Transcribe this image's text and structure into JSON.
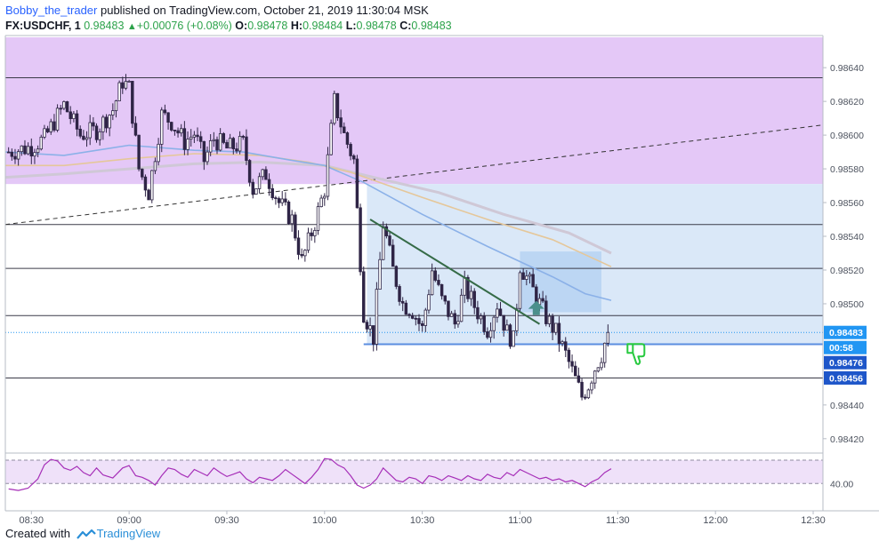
{
  "header": {
    "author": "Bobby_the_trader",
    "published_text": "published on TradingView.com, October 21, 2019 11:30:04 MSK",
    "symbol": "FX:USDCHF, 1",
    "last": "0.98483",
    "change": "+0.00076 (+0.08%)",
    "open_label": "O:",
    "open": "0.98478",
    "high_label": "H:",
    "high": "0.98484",
    "low_label": "L:",
    "low": "0.98478",
    "close_label": "C:",
    "close": "0.98483"
  },
  "footer": {
    "created_with": "Created with",
    "brand": "TradingView"
  },
  "chart_data": {
    "type": "candlestick",
    "instrument": "FX:USDCHF",
    "interval": "1",
    "y_axis": {
      "ticks": [
        "0.98640",
        "0.98620",
        "0.98600",
        "0.98580",
        "0.98560",
        "0.98540",
        "0.98520",
        "0.98500",
        "0.98440",
        "0.98420"
      ],
      "tick_values": [
        0.9864,
        0.9862,
        0.986,
        0.9858,
        0.9856,
        0.9854,
        0.9852,
        0.985,
        0.9844,
        0.9842
      ],
      "range": [
        0.98412,
        0.98658
      ]
    },
    "x_axis": {
      "ticks": [
        "08:30",
        "09:00",
        "09:30",
        "10:00",
        "10:30",
        "11:00",
        "11:30",
        "12:00",
        "12:30"
      ],
      "tick_minutes": [
        510,
        540,
        570,
        600,
        630,
        660,
        690,
        720,
        750
      ],
      "range": [
        502,
        753
      ]
    },
    "price_labels": [
      {
        "text": "0.98483",
        "value": 0.98483,
        "color": "#2196f3"
      },
      {
        "text": "00:58",
        "value": 0.984795,
        "color": "#2196f3"
      },
      {
        "text": "0.98476",
        "value": 0.98476,
        "color": "#1e56c9"
      },
      {
        "text": "0.98456",
        "value": 0.98456,
        "color": "#1e56c9"
      }
    ],
    "horizontal_lines": [
      0.98634,
      0.98547,
      0.98521,
      0.98493,
      0.98456
    ],
    "support_line": {
      "value": 0.98476,
      "from_min": 612,
      "to_min": 753
    },
    "zones": [
      {
        "color": "#e4c8f7",
        "from_min": 502,
        "to_min": 753,
        "top": 0.98658,
        "bottom": 0.98571
      },
      {
        "color": "#dae8f8",
        "from_min": 613,
        "to_min": 753,
        "top": 0.98571,
        "bottom": 0.98476
      },
      {
        "color": "#bcd6f3",
        "from_min": 660,
        "to_min": 685,
        "top": 0.98531,
        "bottom": 0.98495
      }
    ],
    "dashed_trend": {
      "from": [
        502,
        0.98547
      ],
      "to": [
        753,
        0.98606
      ]
    },
    "green_trend": {
      "from": [
        614,
        0.9855
      ],
      "to": [
        666,
        0.98488
      ]
    },
    "ema_fast": {
      "color": "#8bb1e8",
      "points": [
        [
          502,
          0.9859
        ],
        [
          520,
          0.98588
        ],
        [
          540,
          0.98594
        ],
        [
          560,
          0.98591
        ],
        [
          575,
          0.9859
        ],
        [
          590,
          0.98585
        ],
        [
          600,
          0.98582
        ],
        [
          612,
          0.98572
        ],
        [
          630,
          0.98553
        ],
        [
          650,
          0.98534
        ],
        [
          670,
          0.98516
        ],
        [
          680,
          0.98506
        ],
        [
          688,
          0.98502
        ]
      ]
    },
    "ema_mid": {
      "color": "#e5c79a",
      "points": [
        [
          502,
          0.98582
        ],
        [
          520,
          0.98582
        ],
        [
          540,
          0.98586
        ],
        [
          560,
          0.98589
        ],
        [
          580,
          0.98588
        ],
        [
          595,
          0.98584
        ],
        [
          608,
          0.98578
        ],
        [
          630,
          0.98563
        ],
        [
          650,
          0.9855
        ],
        [
          670,
          0.98538
        ],
        [
          688,
          0.98522
        ]
      ]
    },
    "ema_slow": {
      "color": "#cfc8d6",
      "points": [
        [
          502,
          0.98575
        ],
        [
          520,
          0.98577
        ],
        [
          540,
          0.9858
        ],
        [
          560,
          0.98583
        ],
        [
          580,
          0.98584
        ],
        [
          600,
          0.98582
        ],
        [
          615,
          0.98575
        ],
        [
          635,
          0.98566
        ],
        [
          655,
          0.98553
        ],
        [
          675,
          0.98542
        ],
        [
          688,
          0.9853
        ]
      ]
    },
    "arrow_up": {
      "minute": 665,
      "value": 0.98497,
      "color": "#4a8f8b"
    },
    "thumb_down": {
      "minute": 693,
      "value": 0.98473,
      "color": "#27c93f"
    },
    "candles_path": [
      [
        503,
        0.9859
      ],
      [
        510,
        0.98593
      ],
      [
        514,
        0.98598
      ],
      [
        520,
        0.98618
      ],
      [
        525,
        0.986
      ],
      [
        530,
        0.98603
      ],
      [
        535,
        0.98615
      ],
      [
        538,
        0.98632
      ],
      [
        540,
        0.98628
      ],
      [
        543,
        0.9858
      ],
      [
        546,
        0.98566
      ],
      [
        550,
        0.98612
      ],
      [
        553,
        0.98608
      ],
      [
        557,
        0.98596
      ],
      [
        560,
        0.98601
      ],
      [
        563,
        0.98585
      ],
      [
        566,
        0.98598
      ],
      [
        570,
        0.98592
      ],
      [
        575,
        0.98595
      ],
      [
        578,
        0.98568
      ],
      [
        582,
        0.98577
      ],
      [
        586,
        0.9856
      ],
      [
        590,
        0.9855
      ],
      [
        593,
        0.98525
      ],
      [
        597,
        0.98548
      ],
      [
        600,
        0.98568
      ],
      [
        603,
        0.9862
      ],
      [
        606,
        0.986
      ],
      [
        609,
        0.98585
      ],
      [
        612,
        0.98495
      ],
      [
        615,
        0.9848
      ],
      [
        618,
        0.98548
      ],
      [
        621,
        0.9852
      ],
      [
        624,
        0.985
      ],
      [
        627,
        0.98496
      ],
      [
        630,
        0.98485
      ],
      [
        633,
        0.9852
      ],
      [
        636,
        0.98502
      ],
      [
        640,
        0.98488
      ],
      [
        643,
        0.9851
      ],
      [
        647,
        0.98495
      ],
      [
        650,
        0.98485
      ],
      [
        653,
        0.985
      ],
      [
        656,
        0.98483
      ],
      [
        658,
        0.98478
      ],
      [
        660,
        0.98523
      ],
      [
        663,
        0.98512
      ],
      [
        666,
        0.985
      ],
      [
        668,
        0.98492
      ],
      [
        671,
        0.98483
      ],
      [
        674,
        0.9847
      ],
      [
        677,
        0.98455
      ],
      [
        679,
        0.98445
      ],
      [
        681,
        0.98452
      ],
      [
        683,
        0.98462
      ],
      [
        685,
        0.9847
      ],
      [
        687,
        0.98483
      ]
    ],
    "rsi": {
      "label": "40.00",
      "level_value": 40,
      "upper_level": 70,
      "range": [
        30,
        78
      ],
      "points": [
        [
          503,
          33
        ],
        [
          506,
          31
        ],
        [
          509,
          34
        ],
        [
          512,
          46
        ],
        [
          514,
          64
        ],
        [
          516,
          71
        ],
        [
          518,
          69
        ],
        [
          520,
          60
        ],
        [
          522,
          57
        ],
        [
          524,
          62
        ],
        [
          526,
          54
        ],
        [
          528,
          50
        ],
        [
          530,
          60
        ],
        [
          532,
          51
        ],
        [
          535,
          47
        ],
        [
          538,
          60
        ],
        [
          540,
          63
        ],
        [
          542,
          50
        ],
        [
          544,
          48
        ],
        [
          546,
          44
        ],
        [
          548,
          38
        ],
        [
          550,
          50
        ],
        [
          552,
          60
        ],
        [
          554,
          58
        ],
        [
          556,
          52
        ],
        [
          558,
          48
        ],
        [
          560,
          58
        ],
        [
          562,
          54
        ],
        [
          564,
          50
        ],
        [
          566,
          60
        ],
        [
          568,
          54
        ],
        [
          570,
          49
        ],
        [
          572,
          52
        ],
        [
          574,
          55
        ],
        [
          576,
          46
        ],
        [
          578,
          41
        ],
        [
          580,
          48
        ],
        [
          582,
          46
        ],
        [
          584,
          44
        ],
        [
          586,
          50
        ],
        [
          588,
          58
        ],
        [
          590,
          52
        ],
        [
          592,
          46
        ],
        [
          594,
          40
        ],
        [
          596,
          48
        ],
        [
          598,
          58
        ],
        [
          600,
          72
        ],
        [
          602,
          71
        ],
        [
          604,
          64
        ],
        [
          606,
          60
        ],
        [
          608,
          50
        ],
        [
          610,
          38
        ],
        [
          612,
          34
        ],
        [
          614,
          38
        ],
        [
          616,
          46
        ],
        [
          618,
          60
        ],
        [
          620,
          52
        ],
        [
          622,
          44
        ],
        [
          624,
          42
        ],
        [
          626,
          48
        ],
        [
          628,
          46
        ],
        [
          630,
          40
        ],
        [
          632,
          50
        ],
        [
          634,
          48
        ],
        [
          636,
          44
        ],
        [
          638,
          50
        ],
        [
          640,
          47
        ],
        [
          642,
          44
        ],
        [
          644,
          50
        ],
        [
          646,
          46
        ],
        [
          648,
          44
        ],
        [
          650,
          52
        ],
        [
          652,
          48
        ],
        [
          654,
          46
        ],
        [
          656,
          54
        ],
        [
          658,
          50
        ],
        [
          660,
          58
        ],
        [
          662,
          54
        ],
        [
          664,
          50
        ],
        [
          666,
          46
        ],
        [
          668,
          48
        ],
        [
          670,
          44
        ],
        [
          672,
          46
        ],
        [
          674,
          42
        ],
        [
          676,
          44
        ],
        [
          678,
          40
        ],
        [
          680,
          36
        ],
        [
          682,
          42
        ],
        [
          684,
          46
        ],
        [
          686,
          54
        ],
        [
          688,
          59
        ]
      ]
    }
  }
}
